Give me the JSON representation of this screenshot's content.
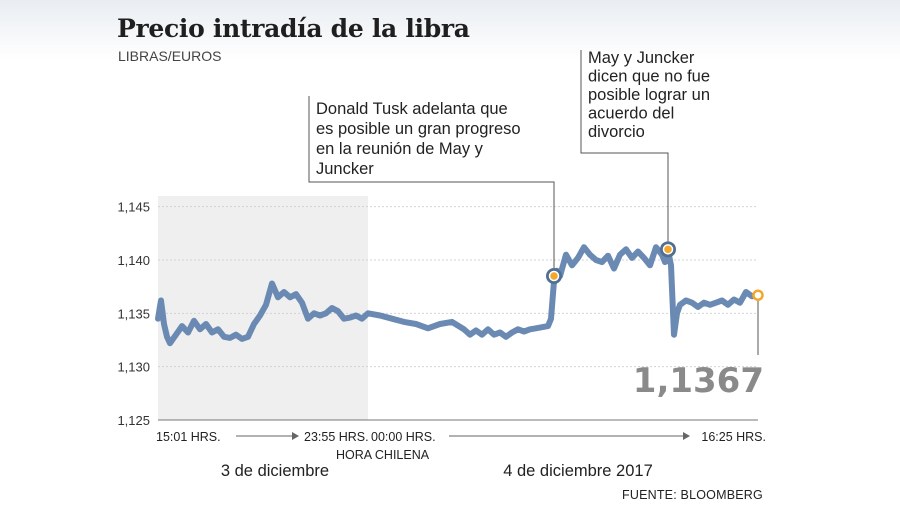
{
  "chart_data": {
    "type": "line",
    "title": "Precio intradía de la libra",
    "subtitle": "LIBRAS/EUROS",
    "source": "FUENTE: BLOOMBERG",
    "ylim": [
      1.125,
      1.146
    ],
    "yticks": [
      "1,145",
      "1,140",
      "1,135",
      "1,130",
      "1,125"
    ],
    "ytick_values": [
      1.145,
      1.14,
      1.135,
      1.13,
      1.125
    ],
    "grid": true,
    "line_color": "#6a8ab3",
    "shade_color": "#efefef",
    "time_labels": {
      "start": "15:01 HRS.",
      "before_midnight": "23:55 HRS.",
      "midnight": "00:00 HRS.",
      "end": "16:25 HRS.",
      "zone": "HORA CHILENA"
    },
    "day_labels": [
      "3 de diciembre",
      "4 de diciembre 2017"
    ],
    "last_value_label": "1,1367",
    "annotations": [
      {
        "text": [
          "Donald Tusk adelanta que",
          "es posible un gran progreso",
          "en la reunión de May y",
          "Juncker"
        ],
        "x": 0.66,
        "y": 1.1385
      },
      {
        "text": [
          "May y Juncker",
          "dicen que no fue",
          "posible lograr un",
          "acuerdo del",
          "divorcio"
        ],
        "x": 0.85,
        "y": 1.141
      }
    ],
    "shaded_range": [
      0,
      0.35
    ],
    "series": [
      {
        "x": [
          0.0,
          0.005,
          0.01,
          0.015,
          0.02,
          0.03,
          0.04,
          0.05,
          0.06,
          0.07,
          0.08,
          0.09,
          0.1,
          0.11,
          0.12,
          0.13,
          0.14,
          0.15,
          0.16,
          0.17,
          0.18,
          0.19,
          0.2,
          0.21,
          0.22,
          0.23,
          0.24,
          0.25,
          0.26,
          0.27,
          0.28,
          0.29,
          0.3,
          0.31,
          0.32,
          0.33,
          0.34,
          0.35,
          0.37,
          0.39,
          0.41,
          0.43,
          0.45,
          0.47,
          0.49,
          0.51,
          0.52,
          0.53,
          0.54,
          0.55,
          0.56,
          0.57,
          0.58,
          0.59,
          0.6,
          0.61,
          0.62,
          0.63,
          0.64,
          0.65,
          0.655,
          0.66,
          0.665,
          0.67,
          0.68,
          0.69,
          0.7,
          0.71,
          0.72,
          0.73,
          0.74,
          0.75,
          0.76,
          0.77,
          0.78,
          0.79,
          0.8,
          0.81,
          0.82,
          0.83,
          0.84,
          0.845,
          0.85,
          0.855,
          0.86,
          0.865,
          0.87,
          0.88,
          0.89,
          0.9,
          0.91,
          0.92,
          0.93,
          0.94,
          0.95,
          0.96,
          0.97,
          0.98,
          0.99,
          1.0
        ],
        "values": [
          1.1345,
          1.1362,
          1.134,
          1.1328,
          1.1322,
          1.133,
          1.1338,
          1.1332,
          1.1343,
          1.1335,
          1.134,
          1.1332,
          1.1335,
          1.1328,
          1.1327,
          1.133,
          1.1326,
          1.1328,
          1.134,
          1.1348,
          1.1358,
          1.1378,
          1.1365,
          1.137,
          1.1365,
          1.1368,
          1.136,
          1.1345,
          1.135,
          1.1348,
          1.135,
          1.1355,
          1.1352,
          1.1345,
          1.1346,
          1.1348,
          1.1345,
          1.135,
          1.1348,
          1.1345,
          1.1342,
          1.134,
          1.1336,
          1.134,
          1.1342,
          1.1335,
          1.133,
          1.1334,
          1.133,
          1.1335,
          1.133,
          1.1332,
          1.1328,
          1.1332,
          1.1335,
          1.1333,
          1.1335,
          1.1336,
          1.1337,
          1.1338,
          1.1345,
          1.138,
          1.139,
          1.1385,
          1.1405,
          1.1395,
          1.1402,
          1.1412,
          1.1405,
          1.14,
          1.1398,
          1.1404,
          1.1392,
          1.1405,
          1.141,
          1.1402,
          1.1408,
          1.1402,
          1.1395,
          1.1412,
          1.1405,
          1.1398,
          1.1409,
          1.1395,
          1.133,
          1.135,
          1.1358,
          1.1362,
          1.136,
          1.1356,
          1.136,
          1.1358,
          1.136,
          1.1362,
          1.1358,
          1.1363,
          1.136,
          1.137,
          1.1366,
          1.1367
        ]
      }
    ]
  }
}
